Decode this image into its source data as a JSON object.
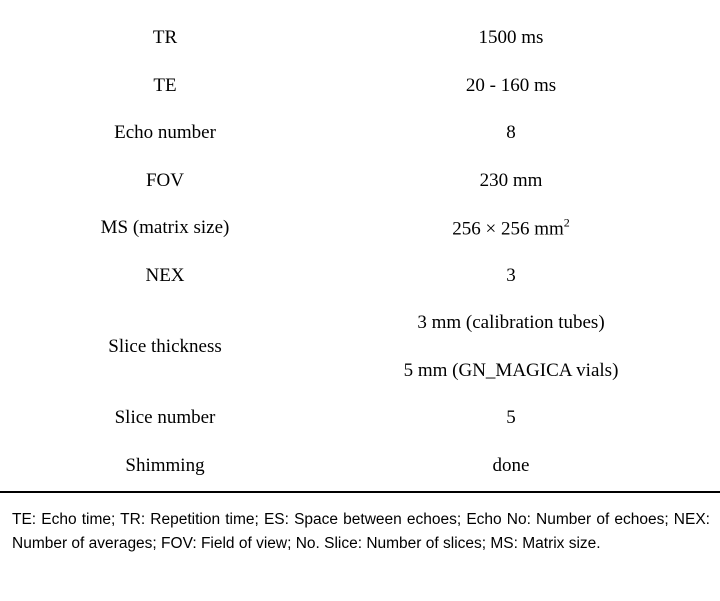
{
  "table": {
    "rows": [
      {
        "label": "TR",
        "values": [
          "1500 ms"
        ]
      },
      {
        "label": "TE",
        "values": [
          "20 - 160 ms"
        ]
      },
      {
        "label": "Echo number",
        "values": [
          "8"
        ]
      },
      {
        "label": "FOV",
        "values": [
          "230 mm"
        ]
      },
      {
        "label": "MS (matrix size)",
        "values": [
          "256 × 256 mm"
        ],
        "superscript": "2"
      },
      {
        "label": "NEX",
        "values": [
          "3"
        ]
      },
      {
        "label": "Slice thickness",
        "values": [
          "3 mm (calibration tubes)",
          "5 mm (GN_MAGICA vials)"
        ]
      },
      {
        "label": "Slice number",
        "values": [
          "5"
        ]
      },
      {
        "label": "Shimming",
        "values": [
          "done"
        ]
      }
    ]
  },
  "footnote": "TE: Echo time; TR: Repetition time; ES: Space between echoes; Echo No: Number of echoes; NEX: Number of averages; FOV: Field of view; No. Slice: Number of slices; MS: Matrix size."
}
